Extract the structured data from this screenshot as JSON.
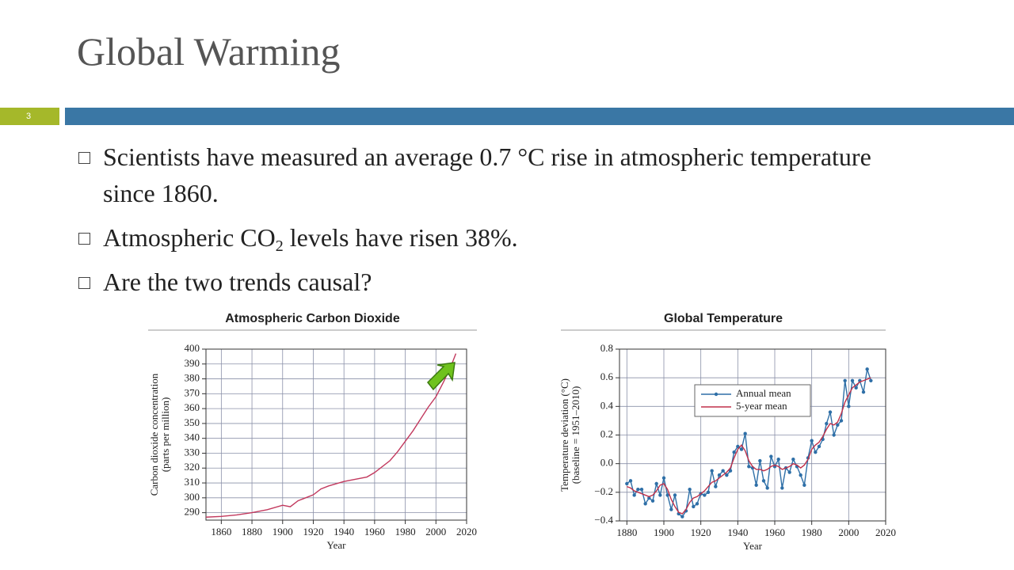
{
  "title": "Global Warming",
  "slide_number": "3",
  "bullets": [
    [
      "Scientists have measured an average 0.7 °C rise in atmospheric temperature since 1860."
    ],
    [
      "Atmospheric CO",
      "2",
      " levels have risen 38%."
    ],
    [
      "Are the two trends causal?"
    ]
  ],
  "chart_data": [
    {
      "type": "line",
      "title": "Atmospheric Carbon Dioxide",
      "xlabel": "Year",
      "ylabel": [
        "Carbon dioxide concentration",
        "(parts per million)"
      ],
      "x": [
        1850,
        1860,
        1870,
        1880,
        1890,
        1900,
        1905,
        1910,
        1920,
        1925,
        1930,
        1940,
        1950,
        1955,
        1960,
        1970,
        1975,
        1980,
        1985,
        1990,
        1995,
        2000,
        2005,
        2010,
        2013
      ],
      "series": [
        {
          "color": "#c2395e",
          "values": [
            287,
            287.5,
            288.5,
            290,
            292,
            295,
            294,
            298,
            302,
            306,
            308,
            311,
            313,
            314,
            317,
            325,
            331,
            338,
            345,
            353,
            361,
            368,
            378,
            389,
            397
          ]
        }
      ],
      "xlim": [
        1850,
        2020
      ],
      "ylim": [
        285,
        400
      ],
      "xticks": [
        1860,
        1880,
        1900,
        1920,
        1940,
        1960,
        1980,
        2000,
        2020
      ],
      "yticks": [
        290,
        300,
        310,
        320,
        330,
        340,
        350,
        360,
        370,
        380,
        390,
        400
      ],
      "grid": true
    },
    {
      "type": "line",
      "title": "Global Temperature",
      "xlabel": "Year",
      "ylabel": [
        "Temperature deviation (°C)",
        "(baseline = 1951–2010)"
      ],
      "x": [
        1880,
        1882,
        1884,
        1886,
        1888,
        1890,
        1892,
        1894,
        1896,
        1898,
        1900,
        1902,
        1904,
        1906,
        1908,
        1910,
        1912,
        1914,
        1916,
        1918,
        1920,
        1922,
        1924,
        1926,
        1928,
        1930,
        1932,
        1934,
        1936,
        1938,
        1940,
        1942,
        1944,
        1946,
        1948,
        1950,
        1952,
        1954,
        1956,
        1958,
        1960,
        1962,
        1964,
        1966,
        1968,
        1970,
        1972,
        1974,
        1976,
        1978,
        1980,
        1982,
        1984,
        1986,
        1988,
        1990,
        1992,
        1994,
        1996,
        1998,
        2000,
        2002,
        2004,
        2006,
        2008,
        2010,
        2012
      ],
      "series": [
        {
          "name": "Annual mean",
          "color": "#2e6fa7",
          "markers": true,
          "values": [
            -0.14,
            -0.12,
            -0.22,
            -0.18,
            -0.18,
            -0.28,
            -0.24,
            -0.26,
            -0.14,
            -0.22,
            -0.1,
            -0.22,
            -0.32,
            -0.22,
            -0.35,
            -0.37,
            -0.33,
            -0.18,
            -0.3,
            -0.28,
            -0.21,
            -0.22,
            -0.2,
            -0.05,
            -0.16,
            -0.08,
            -0.05,
            -0.08,
            -0.05,
            0.08,
            0.12,
            0.1,
            0.21,
            -0.02,
            -0.03,
            -0.15,
            0.02,
            -0.12,
            -0.17,
            0.05,
            -0.02,
            0.03,
            -0.17,
            -0.03,
            -0.06,
            0.03,
            -0.02,
            -0.08,
            -0.15,
            0.04,
            0.16,
            0.08,
            0.12,
            0.17,
            0.28,
            0.36,
            0.2,
            0.27,
            0.3,
            0.58,
            0.4,
            0.58,
            0.53,
            0.58,
            0.5,
            0.66,
            0.58
          ]
        },
        {
          "name": "5-year mean",
          "color": "#c0304a",
          "markers": false,
          "values": [
            -0.16,
            -0.17,
            -0.19,
            -0.2,
            -0.21,
            -0.22,
            -0.23,
            -0.22,
            -0.19,
            -0.15,
            -0.14,
            -0.18,
            -0.25,
            -0.3,
            -0.34,
            -0.35,
            -0.32,
            -0.27,
            -0.24,
            -0.23,
            -0.21,
            -0.19,
            -0.16,
            -0.13,
            -0.12,
            -0.1,
            -0.08,
            -0.06,
            -0.03,
            0.04,
            0.1,
            0.13,
            0.09,
            0.02,
            -0.02,
            -0.04,
            -0.04,
            -0.05,
            -0.04,
            -0.02,
            -0.01,
            -0.02,
            -0.04,
            -0.03,
            -0.02,
            0.0,
            -0.01,
            -0.03,
            -0.01,
            0.03,
            0.1,
            0.13,
            0.15,
            0.19,
            0.24,
            0.28,
            0.27,
            0.29,
            0.35,
            0.43,
            0.48,
            0.53,
            0.55,
            0.57,
            0.58,
            0.59,
            0.6
          ]
        }
      ],
      "xlim": [
        1876,
        2020
      ],
      "ylim": [
        -0.4,
        0.8
      ],
      "xticks": [
        1880,
        1900,
        1920,
        1940,
        1960,
        1980,
        2000,
        2020
      ],
      "yticks": [
        {
          "value": -0.4,
          "label": "−0.4"
        },
        {
          "value": -0.2,
          "label": "−0.2"
        },
        {
          "value": 0,
          "label": "0.0"
        },
        0.2,
        0.4,
        0.6,
        0.8
      ],
      "grid": true,
      "legend": "upper-center"
    }
  ]
}
